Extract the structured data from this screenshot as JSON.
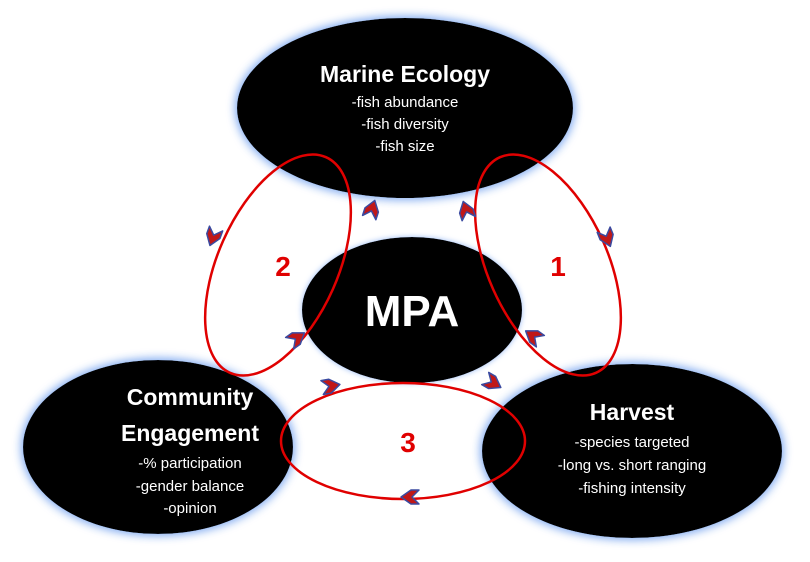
{
  "nodes": {
    "marine_ecology": {
      "title": "Marine Ecology",
      "items": [
        "-fish abundance",
        "-fish diversity",
        "-fish size"
      ]
    },
    "mpa": {
      "title": "MPA"
    },
    "community": {
      "title_lines": [
        "Community",
        "Engagement"
      ],
      "items": [
        "-% participation",
        "-gender balance",
        "-opinion"
      ]
    },
    "harvest": {
      "title": "Harvest",
      "items": [
        "-species targeted",
        "-long vs. short ranging",
        "-fishing intensity"
      ]
    }
  },
  "loops": {
    "loop1": "1",
    "loop2": "2",
    "loop3": "3"
  },
  "colors": {
    "node_fill": "#000000",
    "node_glow": "#8fb4f2",
    "loop_stroke": "#e00000",
    "arrow_fill": "#c01818",
    "arrow_outline": "#3a4aa0",
    "text": "#ffffff",
    "loop_number": "#e00000"
  }
}
